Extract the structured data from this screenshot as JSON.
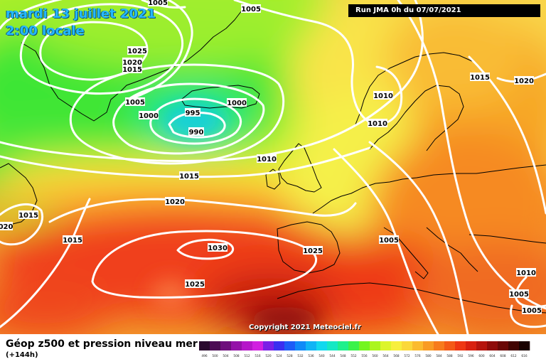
{
  "header": {
    "date": "mardi 13 juillet 2021",
    "time": "2:00 locale",
    "run": "Run JMA 0h du 07/07/2021"
  },
  "copyright": "Copyright 2021 Meteociel.fr",
  "legend": {
    "title": "Géop z500 et pression niveau mer",
    "subtitle": "(+144h)",
    "scale": [
      {
        "label": "496",
        "color": "#2a0a2e"
      },
      {
        "label": "500",
        "color": "#4b0b54"
      },
      {
        "label": "504",
        "color": "#6e0e7c"
      },
      {
        "label": "508",
        "color": "#9412a8"
      },
      {
        "label": "512",
        "color": "#b516c9"
      },
      {
        "label": "516",
        "color": "#d11fe0"
      },
      {
        "label": "520",
        "color": "#7b1fe6"
      },
      {
        "label": "524",
        "color": "#3b2ef0"
      },
      {
        "label": "528",
        "color": "#1d5cf7"
      },
      {
        "label": "532",
        "color": "#108af8"
      },
      {
        "label": "536",
        "color": "#10b4f5"
      },
      {
        "label": "540",
        "color": "#12d8ee"
      },
      {
        "label": "544",
        "color": "#16e8c4"
      },
      {
        "label": "548",
        "color": "#1ff08c"
      },
      {
        "label": "552",
        "color": "#3af24a"
      },
      {
        "label": "556",
        "color": "#74f51f"
      },
      {
        "label": "560",
        "color": "#abf51d"
      },
      {
        "label": "564",
        "color": "#dcf52c"
      },
      {
        "label": "568",
        "color": "#f7ef3d"
      },
      {
        "label": "572",
        "color": "#fbd83a"
      },
      {
        "label": "576",
        "color": "#fbbb2f"
      },
      {
        "label": "580",
        "color": "#f99b24"
      },
      {
        "label": "584",
        "color": "#f77b1c"
      },
      {
        "label": "588",
        "color": "#f45a16"
      },
      {
        "label": "592",
        "color": "#ef3712"
      },
      {
        "label": "596",
        "color": "#d9200f"
      },
      {
        "label": "600",
        "color": "#b6140d"
      },
      {
        "label": "604",
        "color": "#8f0c0a"
      },
      {
        "label": "608",
        "color": "#6a0806"
      },
      {
        "label": "612",
        "color": "#420503"
      },
      {
        "label": "616",
        "color": "#1a0201"
      }
    ]
  },
  "isobars": [
    {
      "id": "iso-1005-top",
      "label": "1005"
    },
    {
      "id": "iso-1005-topr",
      "label": "1005"
    },
    {
      "id": "iso-1025-a",
      "label": "1025"
    },
    {
      "id": "iso-1020-a",
      "label": "1020"
    },
    {
      "id": "iso-1015-a",
      "label": "1015"
    },
    {
      "id": "iso-1005-b",
      "label": "1005"
    },
    {
      "id": "iso-1000-a",
      "label": "1000"
    },
    {
      "id": "iso-1000-b",
      "label": "1000"
    },
    {
      "id": "iso-995",
      "label": "995"
    },
    {
      "id": "iso-990",
      "label": "990"
    },
    {
      "id": "iso-1010-a",
      "label": "1010"
    },
    {
      "id": "iso-1010-b",
      "label": "1010"
    },
    {
      "id": "iso-1010-c",
      "label": "1010"
    },
    {
      "id": "iso-1015-b",
      "label": "1015"
    },
    {
      "id": "iso-1015-c",
      "label": "1015"
    },
    {
      "id": "iso-1015-d",
      "label": "1015"
    },
    {
      "id": "iso-1015-e",
      "label": "1015"
    },
    {
      "id": "iso-1020-b",
      "label": "1020"
    },
    {
      "id": "iso-1020-c",
      "label": "1020"
    },
    {
      "id": "iso-1020-edge",
      "label": "020"
    },
    {
      "id": "iso-1030",
      "label": "1030"
    },
    {
      "id": "iso-1025-b",
      "label": "1025"
    },
    {
      "id": "iso-1025-c",
      "label": "1025"
    },
    {
      "id": "iso-1005-c",
      "label": "1005"
    },
    {
      "id": "iso-1010-d",
      "label": "1010"
    },
    {
      "id": "iso-1005-d",
      "label": "1005"
    },
    {
      "id": "iso-1005-e",
      "label": "1005"
    }
  ]
}
